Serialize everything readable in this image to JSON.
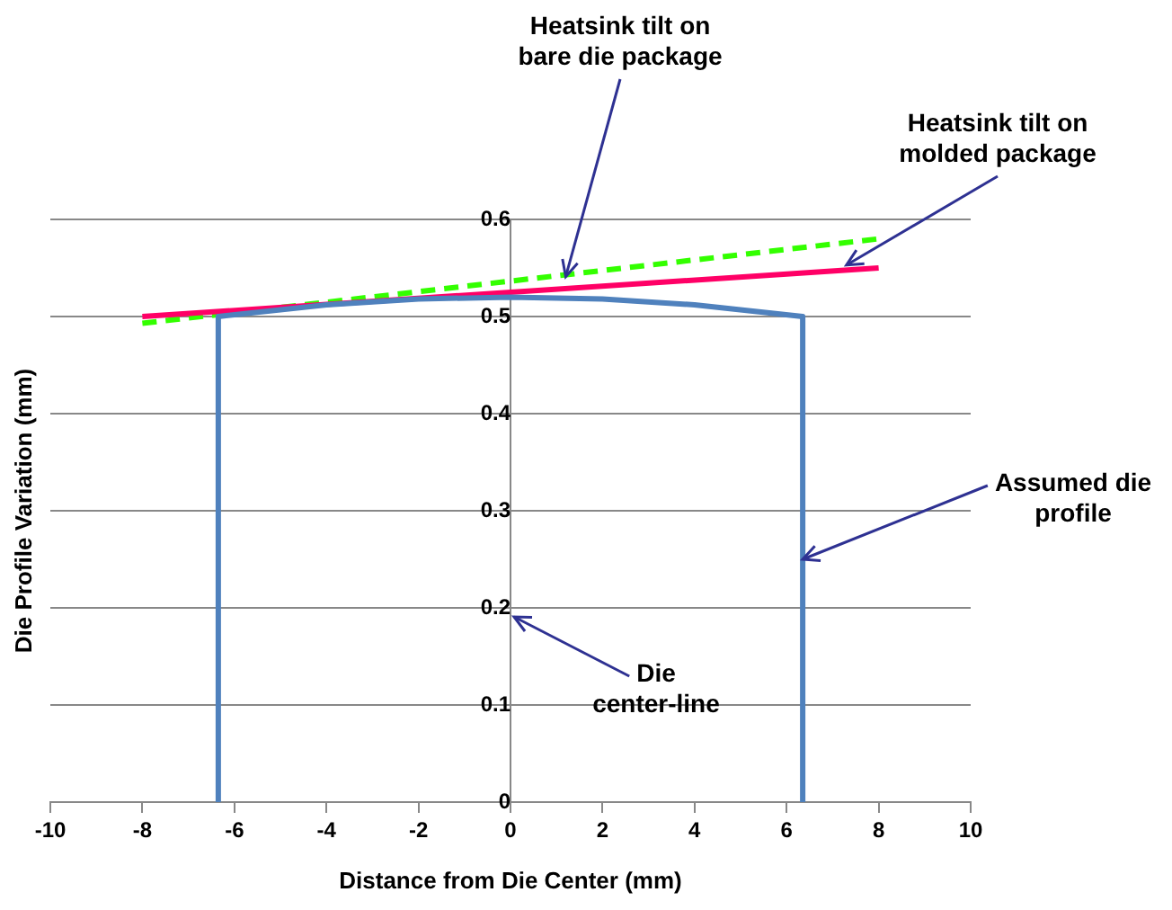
{
  "chart_data": {
    "type": "line",
    "xlabel": "Distance from Die Center (mm)",
    "ylabel": "Die Profile Variation (mm)",
    "xlim": [
      -10,
      10
    ],
    "xticks": [
      -10,
      -8,
      -6,
      -4,
      -2,
      0,
      2,
      4,
      6,
      8,
      10
    ],
    "ylim": [
      0,
      0.6
    ],
    "yticks": [
      0,
      0.1,
      0.2,
      0.3,
      0.4,
      0.5,
      0.6
    ],
    "grid": "y",
    "legend": false,
    "marker": "none",
    "series": [
      {
        "color": "#4f81bd",
        "line_style": "solid",
        "x": [
          -6.35,
          -6.35,
          -4,
          -2,
          0,
          2,
          4,
          6.35,
          6.35
        ],
        "values": [
          0,
          0.5,
          0.512,
          0.518,
          0.52,
          0.518,
          0.512,
          0.5,
          0
        ]
      },
      {
        "color": "#ff0066",
        "line_style": "solid",
        "x": [
          -8,
          8
        ],
        "values": [
          0.5,
          0.55
        ]
      },
      {
        "color": "#33ff00",
        "line_style": "dashed",
        "x": [
          -8,
          8
        ],
        "values": [
          0.493,
          0.58
        ]
      }
    ],
    "annotations": [
      {
        "text": "Heatsink tilt on bare die package",
        "x": 1.2,
        "y": 0.541
      },
      {
        "text": "Heatsink tilt on molded package",
        "x": 7.3,
        "y": 0.553
      },
      {
        "text": "Assumed die profile",
        "x": 6.35,
        "y": 0.25
      },
      "Die center-line"
    ]
  }
}
